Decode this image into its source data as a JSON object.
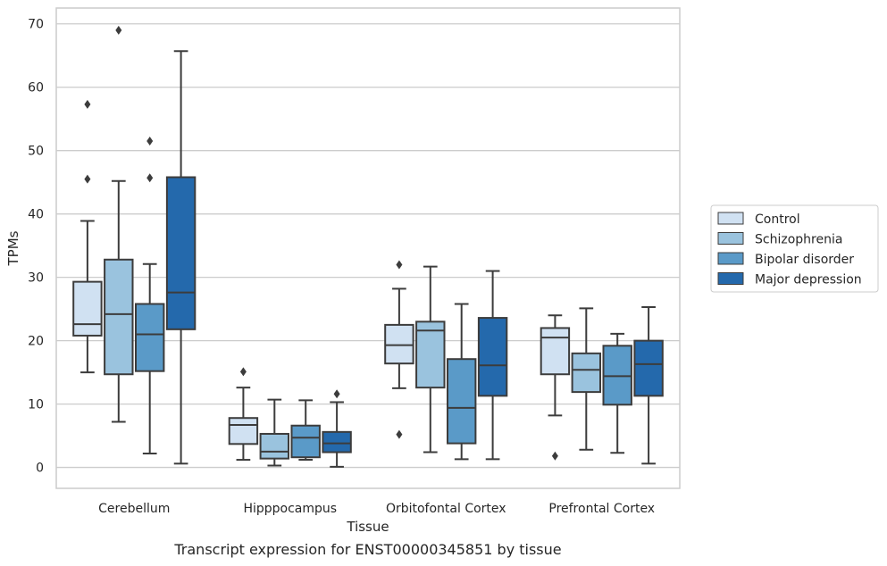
{
  "chart_data": {
    "type": "box",
    "xlabel": "Tissue",
    "ylabel": "TPMs",
    "caption": "Transcript expression for ENST00000345851 by tissue",
    "ylim": [
      -3.3,
      72.5
    ],
    "yticks": [
      0,
      10,
      20,
      30,
      40,
      50,
      60,
      70
    ],
    "grid": "horizontal",
    "legend_position": "right",
    "categories": [
      "Cerebellum",
      "Hipppocampus",
      "Orbitofontal Cortex",
      "Prefrontal Cortex"
    ],
    "series": [
      {
        "name": "Control",
        "color": "#d0e1f2",
        "boxes": [
          {
            "whislo": 15.0,
            "q1": 20.8,
            "med": 22.6,
            "q3": 29.3,
            "whishi": 38.9,
            "fliers": [
              45.5,
              57.3
            ]
          },
          {
            "whislo": 1.2,
            "q1": 3.7,
            "med": 6.7,
            "q3": 7.8,
            "whishi": 12.6,
            "fliers": [
              15.1
            ]
          },
          {
            "whislo": 12.5,
            "q1": 16.4,
            "med": 19.3,
            "q3": 22.5,
            "whishi": 28.2,
            "fliers": [
              32.0,
              5.2
            ]
          },
          {
            "whislo": 8.2,
            "q1": 14.7,
            "med": 20.5,
            "q3": 22.0,
            "whishi": 24.0,
            "fliers": [
              1.8
            ]
          }
        ]
      },
      {
        "name": "Schizophrenia",
        "color": "#9ac3de",
        "boxes": [
          {
            "whislo": 7.2,
            "q1": 14.7,
            "med": 24.2,
            "q3": 32.8,
            "whishi": 45.2,
            "fliers": [
              69.0
            ]
          },
          {
            "whislo": 0.3,
            "q1": 1.4,
            "med": 2.5,
            "q3": 5.3,
            "whishi": 10.7,
            "fliers": []
          },
          {
            "whislo": 2.4,
            "q1": 12.6,
            "med": 21.6,
            "q3": 23.0,
            "whishi": 31.7,
            "fliers": []
          },
          {
            "whislo": 2.8,
            "q1": 11.9,
            "med": 15.4,
            "q3": 18.0,
            "whishi": 25.1,
            "fliers": []
          }
        ]
      },
      {
        "name": "Bipolar disorder",
        "color": "#5a9ac8",
        "boxes": [
          {
            "whislo": 2.2,
            "q1": 15.2,
            "med": 21.0,
            "q3": 25.8,
            "whishi": 32.1,
            "fliers": [
              45.7,
              51.5
            ]
          },
          {
            "whislo": 1.2,
            "q1": 1.6,
            "med": 4.7,
            "q3": 6.6,
            "whishi": 10.6,
            "fliers": []
          },
          {
            "whislo": 1.3,
            "q1": 3.8,
            "med": 9.4,
            "q3": 17.1,
            "whishi": 25.8,
            "fliers": []
          },
          {
            "whislo": 2.3,
            "q1": 9.9,
            "med": 14.4,
            "q3": 19.2,
            "whishi": 21.1,
            "fliers": []
          }
        ]
      },
      {
        "name": "Major depression",
        "color": "#2469ac",
        "boxes": [
          {
            "whislo": 0.6,
            "q1": 21.8,
            "med": 27.6,
            "q3": 45.8,
            "whishi": 65.7,
            "fliers": []
          },
          {
            "whislo": 0.1,
            "q1": 2.4,
            "med": 3.8,
            "q3": 5.6,
            "whishi": 10.3,
            "fliers": [
              11.6
            ]
          },
          {
            "whislo": 1.3,
            "q1": 11.3,
            "med": 16.1,
            "q3": 23.6,
            "whishi": 31.0,
            "fliers": []
          },
          {
            "whislo": 0.6,
            "q1": 11.3,
            "med": 16.3,
            "q3": 20.0,
            "whishi": 25.3,
            "fliers": []
          }
        ]
      }
    ]
  }
}
